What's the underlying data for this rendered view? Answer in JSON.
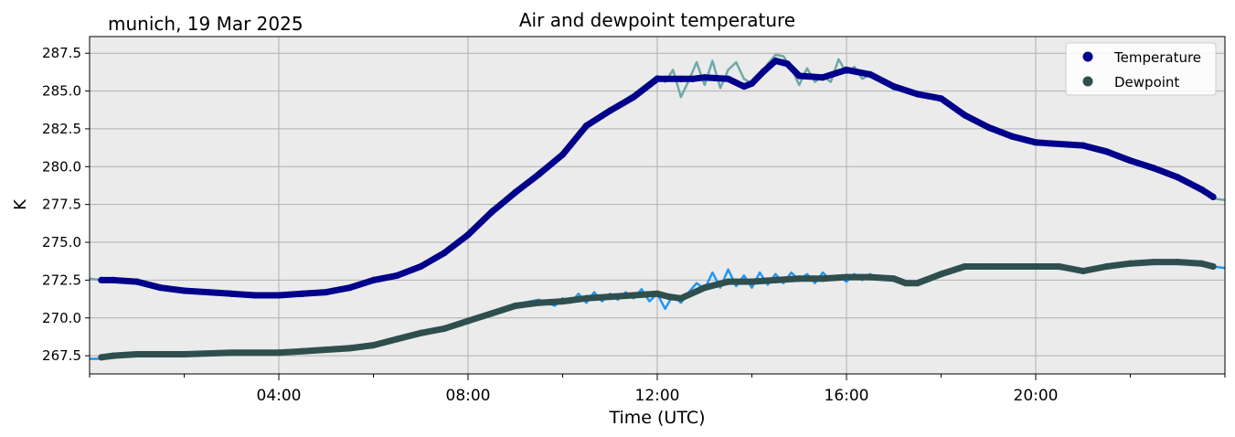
{
  "location_date": "munich, 19 Mar 2025",
  "colors": {
    "temperature": "#00008b",
    "temperature_raw": "#6fa8a8",
    "dewpoint": "#2f4f4f",
    "dewpoint_raw": "#2196f3",
    "plot_background": "#ebebeb",
    "grid": "#b0b0b0"
  },
  "chart_data": {
    "type": "line",
    "title": "Air and dewpoint temperature",
    "xlabel": "Time (UTC)",
    "ylabel": "K",
    "xlim": [
      "00:00",
      "24:00"
    ],
    "ylim": [
      266.3,
      288.6
    ],
    "xticks": [
      "04:00",
      "08:00",
      "12:00",
      "16:00",
      "20:00"
    ],
    "yticks": [
      "267.5",
      "270.0",
      "272.5",
      "275.0",
      "277.5",
      "280.0",
      "282.5",
      "285.0",
      "287.5"
    ],
    "grid": true,
    "legend_position": "top-right",
    "series": [
      {
        "name": "Temperature",
        "x": [
          "00:15",
          "00:30",
          "01:00",
          "01:30",
          "02:00",
          "02:30",
          "03:00",
          "03:30",
          "04:00",
          "04:30",
          "05:00",
          "05:30",
          "06:00",
          "06:30",
          "07:00",
          "07:30",
          "08:00",
          "08:30",
          "09:00",
          "09:30",
          "10:00",
          "10:30",
          "11:00",
          "11:30",
          "12:00",
          "12:30",
          "12:45",
          "13:00",
          "13:30",
          "13:50",
          "14:00",
          "14:15",
          "14:30",
          "14:45",
          "15:00",
          "15:30",
          "16:00",
          "16:30",
          "17:00",
          "17:30",
          "18:00",
          "18:30",
          "19:00",
          "19:30",
          "20:00",
          "20:30",
          "21:00",
          "21:30",
          "22:00",
          "22:30",
          "23:00",
          "23:30",
          "23:45"
        ],
        "values": [
          272.5,
          272.5,
          272.4,
          272.0,
          271.8,
          271.7,
          271.6,
          271.5,
          271.5,
          271.6,
          271.7,
          272.0,
          272.5,
          272.8,
          273.4,
          274.3,
          275.5,
          277.0,
          278.3,
          279.5,
          280.8,
          282.7,
          283.7,
          284.6,
          285.8,
          285.8,
          285.8,
          285.9,
          285.8,
          285.3,
          285.5,
          286.3,
          287.0,
          286.8,
          286.0,
          285.9,
          286.4,
          286.1,
          285.3,
          284.8,
          284.5,
          283.4,
          282.6,
          282.0,
          281.6,
          281.5,
          281.4,
          281.0,
          280.4,
          279.9,
          279.3,
          278.5,
          278.0
        ]
      },
      {
        "name": "Dewpoint",
        "x": [
          "00:15",
          "00:30",
          "01:00",
          "02:00",
          "03:00",
          "04:00",
          "04:30",
          "05:00",
          "05:30",
          "06:00",
          "06:30",
          "07:00",
          "07:30",
          "08:00",
          "08:30",
          "09:00",
          "09:30",
          "10:00",
          "10:30",
          "11:00",
          "11:30",
          "12:00",
          "12:15",
          "12:30",
          "13:00",
          "13:30",
          "14:00",
          "14:30",
          "15:00",
          "15:30",
          "16:00",
          "16:30",
          "17:00",
          "17:15",
          "17:30",
          "18:00",
          "18:30",
          "19:00",
          "19:30",
          "20:00",
          "20:30",
          "21:00",
          "21:30",
          "22:00",
          "22:30",
          "23:00",
          "23:30",
          "23:45"
        ],
        "values": [
          267.4,
          267.5,
          267.6,
          267.6,
          267.7,
          267.7,
          267.8,
          267.9,
          268.0,
          268.2,
          268.6,
          269.0,
          269.3,
          269.8,
          270.3,
          270.8,
          271.0,
          271.1,
          271.3,
          271.4,
          271.5,
          271.6,
          271.4,
          271.3,
          272.0,
          272.4,
          272.4,
          272.5,
          272.6,
          272.6,
          272.7,
          272.7,
          272.6,
          272.3,
          272.3,
          272.9,
          273.4,
          273.4,
          273.4,
          273.4,
          273.4,
          273.1,
          273.4,
          273.6,
          273.7,
          273.7,
          273.6,
          273.4
        ]
      }
    ],
    "raw_traces": [
      {
        "of": "Temperature",
        "x": [
          "00:00",
          "00:15",
          "00:30",
          "01:00",
          "01:30",
          "02:00",
          "02:30",
          "03:00",
          "03:30",
          "04:00",
          "04:30",
          "05:00",
          "05:30",
          "06:00",
          "06:30",
          "07:00",
          "07:30",
          "08:00",
          "08:30",
          "09:00",
          "09:30",
          "10:00",
          "10:30",
          "11:00",
          "11:30",
          "12:00",
          "12:10",
          "12:20",
          "12:30",
          "12:40",
          "12:50",
          "13:00",
          "13:10",
          "13:20",
          "13:30",
          "13:40",
          "13:50",
          "14:00",
          "14:10",
          "14:20",
          "14:30",
          "14:40",
          "14:50",
          "15:00",
          "15:10",
          "15:20",
          "15:30",
          "15:40",
          "15:50",
          "16:00",
          "16:10",
          "16:20",
          "16:30",
          "16:40",
          "17:00",
          "17:30",
          "18:00",
          "18:30",
          "19:00",
          "19:30",
          "20:00",
          "20:30",
          "21:00",
          "21:30",
          "22:00",
          "22:30",
          "23:00",
          "23:30",
          "23:45",
          "24:00"
        ],
        "values": [
          272.6,
          272.5,
          272.5,
          272.4,
          272.0,
          271.8,
          271.7,
          271.6,
          271.5,
          271.5,
          271.6,
          271.7,
          272.0,
          272.5,
          272.8,
          273.4,
          274.3,
          275.6,
          277.2,
          278.4,
          279.7,
          280.9,
          282.8,
          283.8,
          284.8,
          286.0,
          285.6,
          286.4,
          284.6,
          285.7,
          286.9,
          285.4,
          287.0,
          285.2,
          286.4,
          286.9,
          285.8,
          285.5,
          285.9,
          286.8,
          287.4,
          287.3,
          286.5,
          285.4,
          286.5,
          285.6,
          286.0,
          285.6,
          287.1,
          286.2,
          286.6,
          285.8,
          286.1,
          285.9,
          285.1,
          284.9,
          284.5,
          283.4,
          282.6,
          282.0,
          281.6,
          281.5,
          281.4,
          281.0,
          280.4,
          279.9,
          279.3,
          278.5,
          277.9,
          277.8
        ]
      },
      {
        "of": "Dewpoint",
        "x": [
          "00:00",
          "00:15",
          "00:30",
          "01:00",
          "02:00",
          "03:00",
          "04:00",
          "05:00",
          "06:00",
          "07:00",
          "08:00",
          "08:30",
          "09:00",
          "09:30",
          "09:50",
          "10:00",
          "10:10",
          "10:20",
          "10:30",
          "10:40",
          "10:50",
          "11:00",
          "11:10",
          "11:20",
          "11:30",
          "11:40",
          "11:50",
          "12:00",
          "12:10",
          "12:20",
          "12:30",
          "12:40",
          "12:50",
          "13:00",
          "13:10",
          "13:20",
          "13:30",
          "13:40",
          "13:50",
          "14:00",
          "14:10",
          "14:20",
          "14:30",
          "14:40",
          "14:50",
          "15:00",
          "15:10",
          "15:20",
          "15:30",
          "15:40",
          "15:50",
          "16:00",
          "16:10",
          "16:20",
          "16:30",
          "16:40",
          "17:00",
          "17:20",
          "17:40",
          "18:00",
          "18:30",
          "19:00",
          "20:00",
          "21:00",
          "22:00",
          "22:30",
          "23:00",
          "23:45",
          "24:00"
        ],
        "values": [
          267.3,
          267.3,
          267.5,
          267.6,
          267.6,
          267.7,
          267.7,
          267.9,
          268.2,
          269.0,
          269.8,
          270.4,
          270.9,
          271.2,
          270.8,
          271.3,
          271.0,
          271.6,
          271.0,
          271.7,
          271.1,
          271.6,
          271.2,
          271.7,
          271.3,
          271.9,
          271.1,
          271.6,
          270.6,
          271.5,
          271.0,
          271.7,
          272.3,
          271.9,
          273.0,
          272.0,
          273.2,
          272.1,
          272.8,
          272.0,
          273.0,
          272.2,
          272.9,
          272.3,
          273.0,
          272.5,
          272.9,
          272.3,
          273.0,
          272.5,
          272.8,
          272.4,
          272.9,
          272.5,
          272.9,
          272.6,
          272.6,
          272.2,
          272.4,
          272.9,
          273.4,
          273.4,
          273.4,
          273.1,
          273.6,
          273.7,
          273.7,
          273.4,
          273.3
        ]
      }
    ]
  }
}
